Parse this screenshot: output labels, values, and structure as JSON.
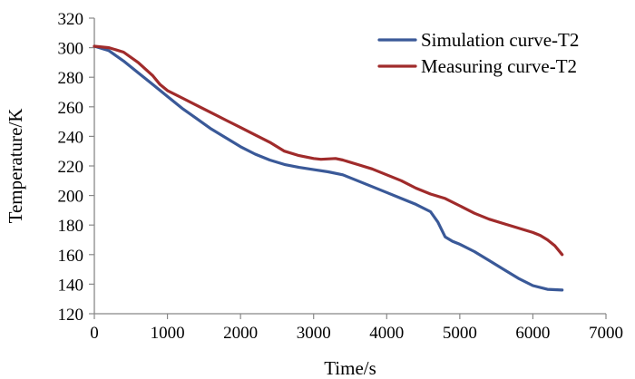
{
  "chart_data": {
    "type": "line",
    "title": "",
    "xlabel": "Time/s",
    "ylabel": "Temperature/K",
    "xlim": [
      0,
      7000
    ],
    "ylim": [
      120,
      320
    ],
    "xticks": [
      0,
      1000,
      2000,
      3000,
      4000,
      5000,
      6000,
      7000
    ],
    "yticks": [
      120,
      140,
      160,
      180,
      200,
      220,
      240,
      260,
      280,
      300,
      320
    ],
    "xtick_labels": [
      "0",
      "1000",
      "2000",
      "3000",
      "4000",
      "5000",
      "6000",
      "7000"
    ],
    "ytick_labels": [
      "120",
      "140",
      "160",
      "180",
      "200",
      "220",
      "240",
      "260",
      "280",
      "300",
      "320"
    ],
    "grid": false,
    "legend_position": "top-right",
    "series": [
      {
        "name": "Simulation curve-T2",
        "color": "#3a5998",
        "x": [
          0,
          200,
          400,
          600,
          800,
          1000,
          1200,
          1400,
          1600,
          1800,
          2000,
          2200,
          2400,
          2600,
          2800,
          3000,
          3200,
          3400,
          3600,
          3800,
          4000,
          4200,
          4400,
          4600,
          4700,
          4800,
          4900,
          5000,
          5200,
          5400,
          5600,
          5800,
          6000,
          6200,
          6400
        ],
        "values": [
          301,
          298,
          291,
          283,
          275,
          267,
          259,
          252,
          245,
          239,
          233,
          228,
          224,
          221,
          219,
          217.5,
          216,
          214,
          210,
          206,
          202,
          198,
          194,
          189,
          182,
          172,
          169,
          167,
          162,
          156,
          150,
          144,
          139,
          136.5,
          136
        ]
      },
      {
        "name": "Measuring curve-T2",
        "color": "#a02b2b",
        "x": [
          0,
          200,
          400,
          600,
          800,
          900,
          1000,
          1200,
          1400,
          1600,
          1800,
          2000,
          2200,
          2400,
          2600,
          2800,
          3000,
          3100,
          3300,
          3400,
          3600,
          3800,
          4000,
          4200,
          4400,
          4600,
          4800,
          5000,
          5200,
          5400,
          5600,
          5800,
          6000,
          6100,
          6200,
          6300,
          6400
        ],
        "values": [
          301,
          300,
          297,
          290,
          281,
          275,
          271,
          266,
          261,
          256,
          251,
          246,
          241,
          236,
          230,
          227,
          225,
          224.5,
          225,
          224,
          221,
          218,
          214,
          210,
          205,
          201,
          198,
          193,
          188,
          184,
          181,
          178,
          175,
          173,
          170,
          166,
          160
        ]
      }
    ]
  }
}
